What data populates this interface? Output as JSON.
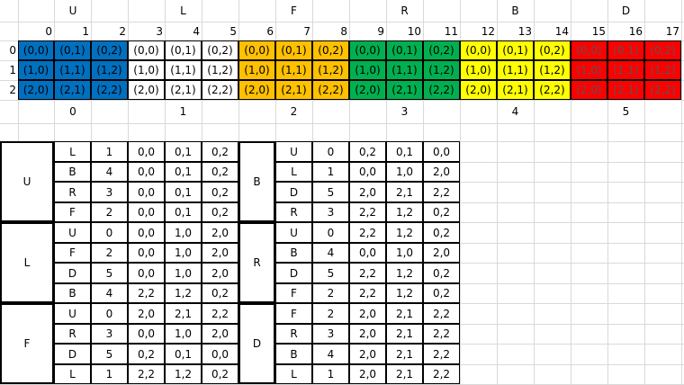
{
  "face_letters": [
    "U",
    "L",
    "F",
    "R",
    "B",
    "D"
  ],
  "col_indices": [
    "0",
    "1",
    "2",
    "3",
    "4",
    "5",
    "6",
    "7",
    "8",
    "9",
    "10",
    "11",
    "12",
    "13",
    "14",
    "15",
    "16",
    "17"
  ],
  "row_indices": [
    "0",
    "1",
    "2"
  ],
  "face_indices": [
    "0",
    "1",
    "2",
    "3",
    "4",
    "5"
  ],
  "cell_labels": [
    [
      "(0,0)",
      "(0,1)",
      "(0,2)"
    ],
    [
      "(1,0)",
      "(1,1)",
      "(1,2)"
    ],
    [
      "(2,0)",
      "(2,1)",
      "(2,2)"
    ]
  ],
  "face_colors": {
    "U": "#0070c0",
    "L": "#ffffff",
    "F": "#ffc000",
    "R": "#00b050",
    "B": "#ffff00",
    "D": "#ff0000"
  },
  "adjacency": [
    {
      "face": "U",
      "rows": [
        [
          "L",
          "1",
          "0,0",
          "0,1",
          "0,2"
        ],
        [
          "B",
          "4",
          "0,0",
          "0,1",
          "0,2"
        ],
        [
          "R",
          "3",
          "0,0",
          "0,1",
          "0,2"
        ],
        [
          "F",
          "2",
          "0,0",
          "0,1",
          "0,2"
        ]
      ]
    },
    {
      "face": "L",
      "rows": [
        [
          "U",
          "0",
          "0,0",
          "1,0",
          "2,0"
        ],
        [
          "F",
          "2",
          "0,0",
          "1,0",
          "2,0"
        ],
        [
          "D",
          "5",
          "0,0",
          "1,0",
          "2,0"
        ],
        [
          "B",
          "4",
          "2,2",
          "1,2",
          "0,2"
        ]
      ]
    },
    {
      "face": "F",
      "rows": [
        [
          "U",
          "0",
          "2,0",
          "2,1",
          "2,2"
        ],
        [
          "R",
          "3",
          "0,0",
          "1,0",
          "2,0"
        ],
        [
          "D",
          "5",
          "0,2",
          "0,1",
          "0,0"
        ],
        [
          "L",
          "1",
          "2,2",
          "1,2",
          "0,2"
        ]
      ]
    },
    {
      "face": "B",
      "rows": [
        [
          "U",
          "0",
          "0,2",
          "0,1",
          "0,0"
        ],
        [
          "L",
          "1",
          "0,0",
          "1,0",
          "2,0"
        ],
        [
          "D",
          "5",
          "2,0",
          "2,1",
          "2,2"
        ],
        [
          "R",
          "3",
          "2,2",
          "1,2",
          "0,2"
        ]
      ]
    },
    {
      "face": "R",
      "rows": [
        [
          "U",
          "0",
          "2,2",
          "1,2",
          "0,2"
        ],
        [
          "B",
          "4",
          "0,0",
          "1,0",
          "2,0"
        ],
        [
          "D",
          "5",
          "2,2",
          "1,2",
          "0,2"
        ],
        [
          "F",
          "2",
          "2,2",
          "1,2",
          "0,2"
        ]
      ]
    },
    {
      "face": "D",
      "rows": [
        [
          "F",
          "2",
          "2,0",
          "2,1",
          "2,2"
        ],
        [
          "R",
          "3",
          "2,0",
          "2,1",
          "2,2"
        ],
        [
          "B",
          "4",
          "2,0",
          "2,1",
          "2,2"
        ],
        [
          "L",
          "1",
          "2,0",
          "2,1",
          "2,2"
        ]
      ]
    }
  ]
}
